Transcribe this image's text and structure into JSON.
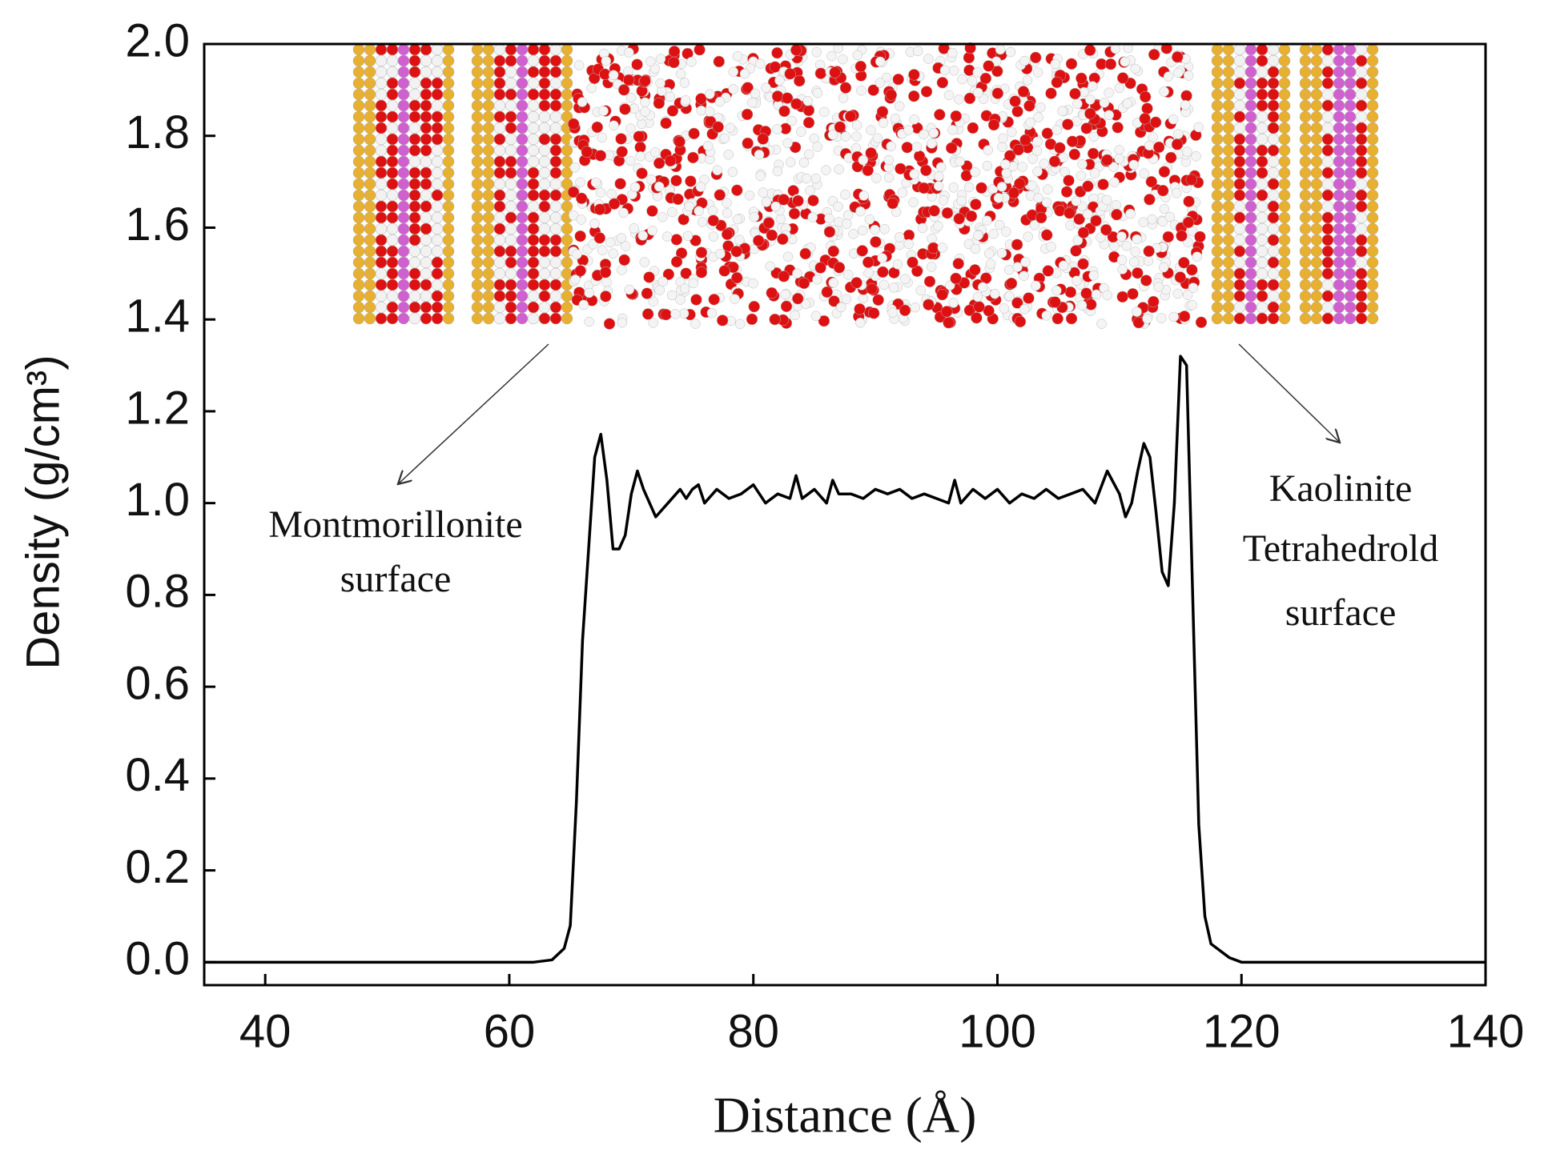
{
  "chart_data": {
    "type": "line",
    "x_label": "Distance (Å)",
    "y_label": "Density (g/cm³)",
    "annotations": [
      {
        "lines": [
          "Montmorillonite",
          "surface"
        ]
      },
      {
        "lines": [
          "Kaolinite",
          "Tetrahedrold",
          "surface"
        ]
      }
    ],
    "xlim": [
      35,
      140
    ],
    "ylim": [
      -0.05,
      2.0
    ],
    "xticks": [
      40,
      60,
      80,
      100,
      120,
      140
    ],
    "yticks": [
      {
        "value": 0,
        "label": "0.0"
      },
      {
        "value": 0.2,
        "label": "0.2"
      },
      {
        "value": 0.4,
        "label": "0.4"
      },
      {
        "value": 0.6,
        "label": "0.6"
      },
      {
        "value": 0.8,
        "label": "0.8"
      },
      {
        "value": 1.0,
        "label": "1.0"
      },
      {
        "value": 1.2,
        "label": "1.2"
      },
      {
        "value": 1.4,
        "label": "1.4"
      },
      {
        "value": 1.6,
        "label": "1.6"
      },
      {
        "value": 1.8,
        "label": "1.8"
      },
      {
        "value": 2.0,
        "label": "2.0"
      }
    ],
    "series": [
      {
        "name": "Density",
        "color": "#000000",
        "x": [
          35,
          62,
          63.5,
          64.5,
          65,
          65.5,
          66,
          66.5,
          67,
          67.5,
          68,
          68.5,
          69,
          69.5,
          70,
          70.5,
          71,
          72,
          73,
          74,
          74.5,
          75,
          75.5,
          76,
          77,
          78,
          79,
          80,
          81,
          82,
          83,
          83.5,
          84,
          85,
          86,
          86.5,
          87,
          88,
          89,
          90,
          91,
          92,
          93,
          94,
          95,
          96,
          96.5,
          97,
          98,
          99,
          100,
          101,
          102,
          103,
          104,
          105,
          106,
          107,
          108,
          109,
          110,
          110.5,
          111,
          111.5,
          112,
          112.5,
          113,
          113.5,
          114,
          114.5,
          115,
          115.5,
          116,
          116.5,
          117,
          117.5,
          118,
          119,
          120,
          140
        ],
        "values": [
          0,
          0,
          0.005,
          0.03,
          0.08,
          0.35,
          0.7,
          0.9,
          1.1,
          1.15,
          1.05,
          0.9,
          0.9,
          0.93,
          1.02,
          1.07,
          1.03,
          0.97,
          1.0,
          1.03,
          1.01,
          1.03,
          1.04,
          1.0,
          1.03,
          1.01,
          1.02,
          1.04,
          1.0,
          1.02,
          1.01,
          1.06,
          1.01,
          1.03,
          1.0,
          1.05,
          1.02,
          1.02,
          1.01,
          1.03,
          1.02,
          1.03,
          1.01,
          1.02,
          1.01,
          1.0,
          1.05,
          1.0,
          1.03,
          1.01,
          1.03,
          1.0,
          1.02,
          1.01,
          1.03,
          1.01,
          1.02,
          1.03,
          1.0,
          1.07,
          1.02,
          0.97,
          1.0,
          1.07,
          1.13,
          1.1,
          0.98,
          0.85,
          0.82,
          1.0,
          1.32,
          1.3,
          0.8,
          0.3,
          0.1,
          0.04,
          0.03,
          0.01,
          0,
          0
        ]
      }
    ]
  }
}
